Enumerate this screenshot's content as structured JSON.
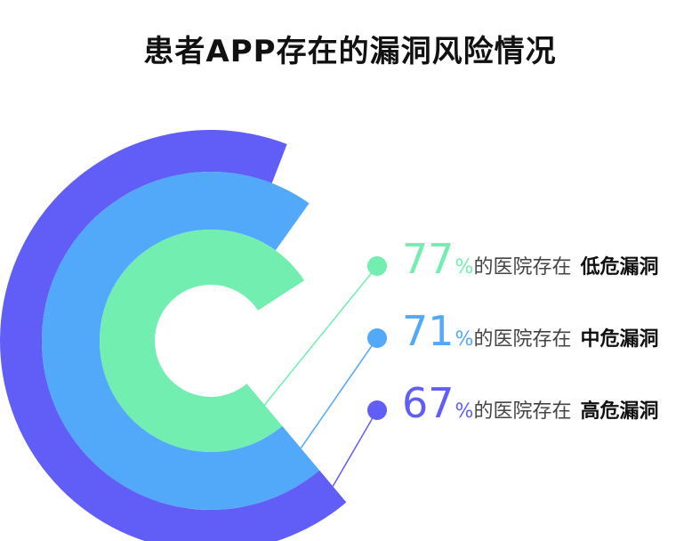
{
  "title": "患者APP存在的漏洞风险情况",
  "chart_data": {
    "type": "radial-bar",
    "title": "患者APP存在的漏洞风险情况",
    "unit": "%",
    "series": [
      {
        "category": "低危漏洞",
        "value": 77,
        "value_text": "77",
        "prefix": "的医院存在",
        "color": "#72eeb0"
      },
      {
        "category": "中危漏洞",
        "value": 71,
        "value_text": "71",
        "prefix": "的医院存在",
        "color": "#52a8f9"
      },
      {
        "category": "高危漏洞",
        "value": 67,
        "value_text": "67",
        "prefix": "的医院存在",
        "color": "#615ef7"
      }
    ]
  }
}
